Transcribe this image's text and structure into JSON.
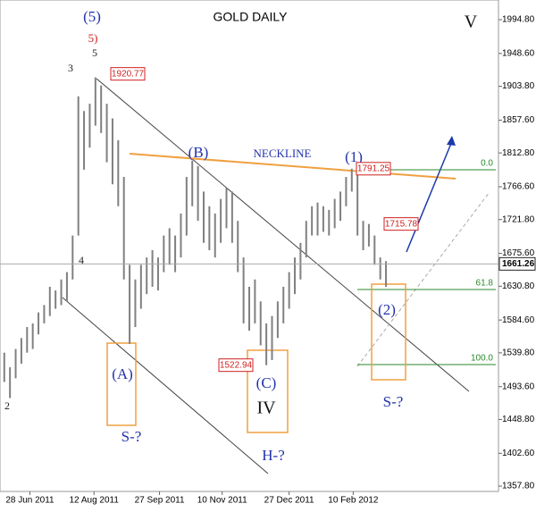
{
  "chart_data": {
    "type": "ohlc",
    "title": "GOLD DAILY",
    "x": [
      "2011-06-10",
      "2011-06-14",
      "2011-06-18",
      "2011-06-22",
      "2011-06-26",
      "2011-06-30",
      "2011-07-04",
      "2011-07-08",
      "2011-07-12",
      "2011-07-16",
      "2011-07-20",
      "2011-07-24",
      "2011-07-28",
      "2011-08-01",
      "2011-08-05",
      "2011-08-09",
      "2011-08-13",
      "2011-08-17",
      "2011-08-21",
      "2011-08-25",
      "2011-08-29",
      "2011-09-02",
      "2011-09-06",
      "2011-09-10",
      "2011-09-14",
      "2011-09-18",
      "2011-09-22",
      "2011-09-26",
      "2011-09-30",
      "2011-10-04",
      "2011-10-08",
      "2011-10-12",
      "2011-10-16",
      "2011-10-20",
      "2011-10-24",
      "2011-10-28",
      "2011-11-01",
      "2011-11-05",
      "2011-11-09",
      "2011-11-13",
      "2011-11-17",
      "2011-11-21",
      "2011-11-25",
      "2011-11-29",
      "2011-12-03",
      "2011-12-07",
      "2011-12-11",
      "2011-12-15",
      "2011-12-19",
      "2011-12-23",
      "2011-12-27",
      "2011-12-31",
      "2012-01-04",
      "2012-01-08",
      "2012-01-12",
      "2012-01-16",
      "2012-01-20",
      "2012-01-24",
      "2012-01-28",
      "2012-02-01",
      "2012-02-05",
      "2012-02-09",
      "2012-02-13",
      "2012-02-17",
      "2012-02-21",
      "2012-02-25",
      "2012-02-29",
      "2012-03-04"
    ],
    "high": [
      1540,
      1520,
      1545,
      1560,
      1575,
      1580,
      1595,
      1605,
      1630,
      1625,
      1640,
      1650,
      1700,
      1890,
      1870,
      1880,
      1916,
      1905,
      1880,
      1860,
      1830,
      1780,
      1660,
      1640,
      1660,
      1670,
      1680,
      1670,
      1700,
      1710,
      1700,
      1730,
      1780,
      1802,
      1795,
      1760,
      1740,
      1730,
      1750,
      1765,
      1760,
      1720,
      1670,
      1630,
      1640,
      1610,
      1580,
      1590,
      1610,
      1630,
      1650,
      1670,
      1690,
      1720,
      1740,
      1745,
      1740,
      1735,
      1750,
      1760,
      1780,
      1791.25,
      1785,
      1720,
      1715.78,
      1700,
      1670,
      1665
    ],
    "low": [
      1500,
      1478,
      1505,
      1525,
      1540,
      1545,
      1565,
      1580,
      1590,
      1600,
      1605,
      1610,
      1640,
      1700,
      1790,
      1820,
      1850,
      1840,
      1800,
      1770,
      1740,
      1640,
      1552,
      1575,
      1600,
      1620,
      1630,
      1625,
      1650,
      1660,
      1650,
      1670,
      1700,
      1740,
      1720,
      1690,
      1680,
      1670,
      1690,
      1710,
      1690,
      1650,
      1580,
      1570,
      1580,
      1550,
      1523,
      1530,
      1560,
      1580,
      1600,
      1620,
      1640,
      1670,
      1700,
      1700,
      1705,
      1700,
      1710,
      1720,
      1740,
      1760,
      1700,
      1680,
      1685,
      1660,
      1640,
      1630
    ],
    "color": "#808080",
    "xlim": [
      "2011-06-07",
      "2012-05-22"
    ],
    "xticks": [
      {
        "value": "2011-06-28",
        "label": "28 Jun 2011"
      },
      {
        "value": "2011-08-12",
        "label": "12 Aug 2011"
      },
      {
        "value": "2011-09-27",
        "label": "27 Sep 2011"
      },
      {
        "value": "2011-11-10",
        "label": "10 Nov 2011"
      },
      {
        "value": "2011-12-27",
        "label": "27 Dec 2011"
      },
      {
        "value": "2012-02-10",
        "label": "10 Feb 2012"
      }
    ],
    "ylim": [
      1357.8,
      1994.8
    ],
    "yticks": [
      {
        "value": 1357.8,
        "label": "1357.80"
      },
      {
        "value": 1402.6,
        "label": "1402.60"
      },
      {
        "value": 1448.8,
        "label": "1448.80"
      },
      {
        "value": 1493.6,
        "label": "1493.60"
      },
      {
        "value": 1539.8,
        "label": "1539.80"
      },
      {
        "value": 1584.6,
        "label": "1584.60"
      },
      {
        "value": 1630.8,
        "label": "1630.80"
      },
      {
        "value": 1675.6,
        "label": "1675.60"
      },
      {
        "value": 1721.8,
        "label": "1721.80"
      },
      {
        "value": 1766.6,
        "label": "1766.60"
      },
      {
        "value": 1812.8,
        "label": "1812.80"
      },
      {
        "value": 1857.6,
        "label": "1857.60"
      },
      {
        "value": 1903.8,
        "label": "1903.80"
      },
      {
        "value": 1948.6,
        "label": "1948.60"
      },
      {
        "value": 1994.8,
        "label": "1994.80"
      }
    ],
    "last_price": 1661.26,
    "price_labels": [
      1920.77,
      1791.25,
      1715.78,
      1522.94
    ],
    "fib_labels": [
      {
        "value": 0,
        "label": "0.0"
      },
      {
        "value": 61.8,
        "label": "61.8"
      },
      {
        "value": 100,
        "label": "100.0"
      }
    ],
    "annotations": [
      "(5)",
      "5)",
      "5",
      "3",
      "4",
      "2",
      "(A)",
      "S-?",
      "(B)",
      "NECKLINE",
      "(1)",
      "(2)",
      "S-?",
      "(C)",
      "IV",
      "H-?",
      "V"
    ]
  }
}
